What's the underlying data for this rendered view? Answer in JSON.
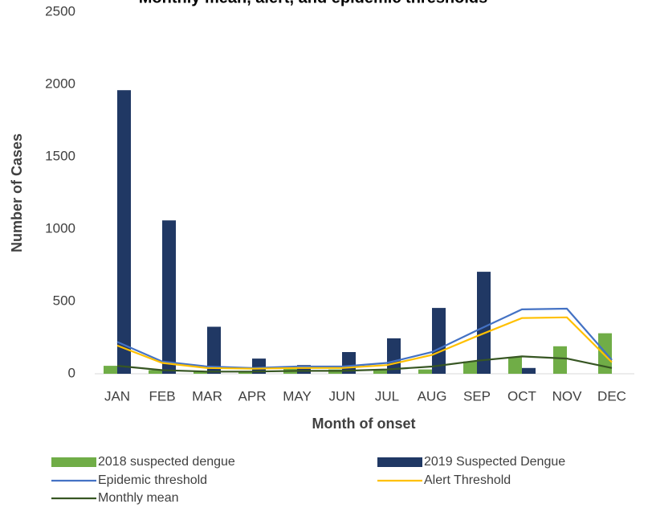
{
  "chart_data": {
    "type": "bar_line",
    "title": "Monthly mean, alert, and epidemic thresholds",
    "x_label": "Month of onset",
    "y_label": "Number of Cases",
    "categories": [
      "JAN",
      "FEB",
      "MAR",
      "APR",
      "MAY",
      "JUN",
      "JUL",
      "AUG",
      "SEP",
      "OCT",
      "NOV",
      "DEC"
    ],
    "series": [
      {
        "name": "2018 suspected dengue",
        "kind": "bar",
        "color": "#70ad47",
        "values": [
          55,
          25,
          15,
          15,
          35,
          30,
          30,
          30,
          85,
          115,
          190,
          280
        ]
      },
      {
        "name": "2019 Suspected Dengue",
        "kind": "bar",
        "color": "#203864",
        "values": [
          1960,
          1060,
          325,
          105,
          60,
          150,
          245,
          455,
          705,
          40,
          null,
          null
        ]
      },
      {
        "name": "Epidemic threshold",
        "kind": "line",
        "color": "#4472c4",
        "values": [
          220,
          85,
          50,
          40,
          50,
          50,
          75,
          150,
          300,
          445,
          450,
          95
        ]
      },
      {
        "name": "Alert Threshold",
        "kind": "line",
        "color": "#ffc000",
        "values": [
          195,
          75,
          40,
          35,
          40,
          40,
          60,
          130,
          260,
          385,
          390,
          80
        ]
      },
      {
        "name": "Monthly mean",
        "kind": "line",
        "color": "#375623",
        "values": [
          55,
          25,
          15,
          15,
          20,
          20,
          30,
          50,
          90,
          120,
          105,
          40
        ]
      }
    ],
    "ylim": [
      0,
      2500
    ],
    "yticks": [
      0,
      500,
      1000,
      1500,
      2000,
      2500
    ]
  }
}
